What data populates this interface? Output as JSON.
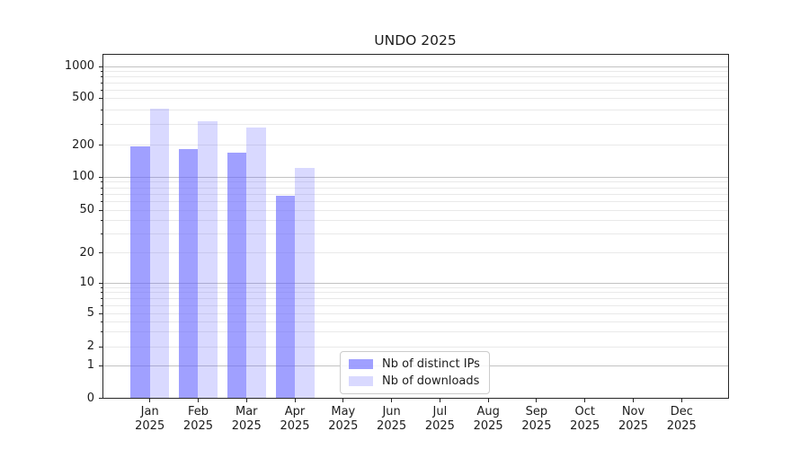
{
  "chart_data": {
    "type": "bar",
    "title": "UNDO 2025",
    "categories": [
      "Jan 2025",
      "Feb 2025",
      "Mar 2025",
      "Apr 2025",
      "May 2025",
      "Jun 2025",
      "Jul 2025",
      "Aug 2025",
      "Sep 2025",
      "Oct 2025",
      "Nov 2025",
      "Dec 2025"
    ],
    "x_tick_labels": [
      {
        "line1": "Jan",
        "line2": "2025"
      },
      {
        "line1": "Feb",
        "line2": "2025"
      },
      {
        "line1": "Mar",
        "line2": "2025"
      },
      {
        "line1": "Apr",
        "line2": "2025"
      },
      {
        "line1": "May",
        "line2": "2025"
      },
      {
        "line1": "Jun",
        "line2": "2025"
      },
      {
        "line1": "Jul",
        "line2": "2025"
      },
      {
        "line1": "Aug",
        "line2": "2025"
      },
      {
        "line1": "Sep",
        "line2": "2025"
      },
      {
        "line1": "Oct",
        "line2": "2025"
      },
      {
        "line1": "Nov",
        "line2": "2025"
      },
      {
        "line1": "Dec",
        "line2": "2025"
      }
    ],
    "series": [
      {
        "name": "Nb of distinct IPs",
        "css_color": "rgba(102,102,255,0.62)",
        "base_color": "#6666ff",
        "alpha": 0.62,
        "values": [
          195,
          185,
          170,
          68,
          null,
          null,
          null,
          null,
          null,
          null,
          null,
          null
        ]
      },
      {
        "name": "Nb of downloads",
        "css_color": "rgba(102,102,255,0.25)",
        "base_color": "#6666ff",
        "alpha": 0.25,
        "values": [
          410,
          320,
          280,
          122,
          null,
          null,
          null,
          null,
          null,
          null,
          null,
          null
        ]
      }
    ],
    "y_axis": {
      "scale": "symlog",
      "ticks": [
        0,
        1,
        2,
        5,
        10,
        20,
        50,
        100,
        200,
        500,
        1000
      ],
      "ylim": [
        0,
        1300
      ]
    },
    "grid": {
      "axis": "y",
      "major": true,
      "minor": true
    },
    "legend": {
      "position": "inside-lower-center",
      "labels": [
        "Nb of distinct IPs",
        "Nb of downloads"
      ]
    }
  },
  "colors": {
    "background": "#ffffff",
    "bar_distinct_ips_on_white": "#a9a9f8",
    "bar_downloads_on_white": "#dcdcf9",
    "grid_major": "#c2c2c2",
    "grid_minor": "#e9e9e9",
    "axis": "#262626",
    "text": "#1c1c1c",
    "legend_border": "#cccccc"
  }
}
